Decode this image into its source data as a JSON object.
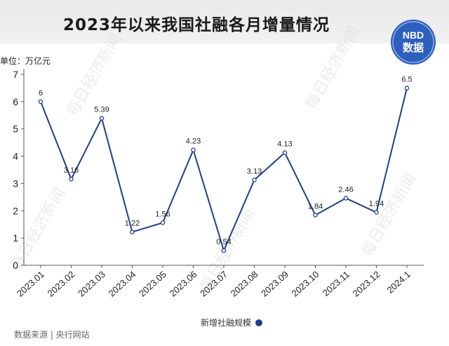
{
  "title": "2023年以来我国社融各月增量情况",
  "unit": "单位：万亿元",
  "source": "数据来源 | 央行网站",
  "logo": {
    "top_text": "NBD",
    "bottom_text": "数据",
    "color": "#2d5fbf"
  },
  "watermark": "每日经济新闻",
  "colors": {
    "line": "#1f3e8a",
    "axis": "#555555",
    "text": "#222222"
  },
  "chart_data": {
    "type": "line",
    "categories": [
      "2023.01",
      "2023.02",
      "2023.03",
      "2023.04",
      "2023.05",
      "2023.06",
      "2023.07",
      "2023.08",
      "2023.09",
      "2023.10",
      "2023.11",
      "2023.12",
      "2024.1"
    ],
    "series": [
      {
        "name": "新增社融规模",
        "values": [
          6,
          3.16,
          5.39,
          1.22,
          1.56,
          4.23,
          0.54,
          3.13,
          4.13,
          1.84,
          2.46,
          1.94,
          6.5
        ],
        "labels": [
          "6",
          "3.16",
          "5.39",
          "1.22",
          "1.56",
          "4.23",
          "0.54",
          "3.13",
          "4.13",
          "1.84",
          "2.46",
          "1.94",
          "6.5"
        ]
      }
    ],
    "ylim": [
      0,
      7
    ],
    "yticks": [
      0,
      1,
      2,
      3,
      4,
      5,
      6,
      7
    ],
    "grid": false,
    "legend_position": "bottom-center"
  }
}
